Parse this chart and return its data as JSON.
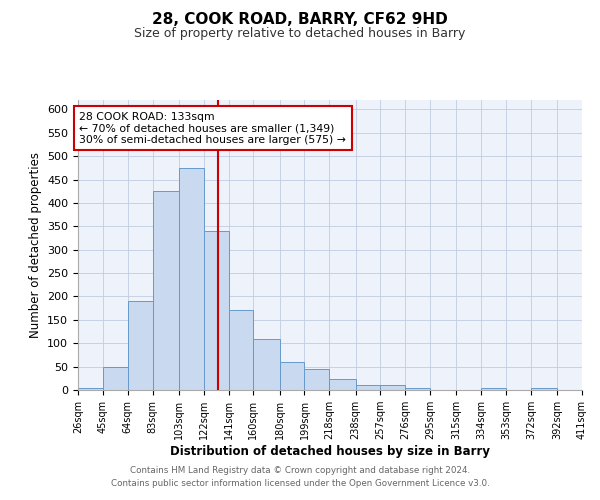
{
  "title": "28, COOK ROAD, BARRY, CF62 9HD",
  "subtitle": "Size of property relative to detached houses in Barry",
  "xlabel": "Distribution of detached houses by size in Barry",
  "ylabel": "Number of detached properties",
  "bin_labels": [
    "26sqm",
    "45sqm",
    "64sqm",
    "83sqm",
    "103sqm",
    "122sqm",
    "141sqm",
    "160sqm",
    "180sqm",
    "199sqm",
    "218sqm",
    "238sqm",
    "257sqm",
    "276sqm",
    "295sqm",
    "315sqm",
    "334sqm",
    "353sqm",
    "372sqm",
    "392sqm",
    "411sqm"
  ],
  "bin_edges": [
    26,
    45,
    64,
    83,
    103,
    122,
    141,
    160,
    180,
    199,
    218,
    238,
    257,
    276,
    295,
    315,
    334,
    353,
    372,
    392,
    411
  ],
  "bar_values": [
    5,
    50,
    190,
    425,
    475,
    340,
    172,
    108,
    60,
    45,
    23,
    10,
    10,
    5,
    0,
    0,
    5,
    0,
    5,
    0
  ],
  "bar_color": "#c9d9f0",
  "bar_edge_color": "#6699cc",
  "vline_color": "#cc0000",
  "vline_x": 133,
  "annotation_title": "28 COOK ROAD: 133sqm",
  "annotation_line1": "← 70% of detached houses are smaller (1,349)",
  "annotation_line2": "30% of semi-detached houses are larger (575) →",
  "annotation_box_facecolor": "#ffffff",
  "annotation_box_edgecolor": "#cc0000",
  "ylim": [
    0,
    620
  ],
  "yticks": [
    0,
    50,
    100,
    150,
    200,
    250,
    300,
    350,
    400,
    450,
    500,
    550,
    600
  ],
  "footer_line1": "Contains HM Land Registry data © Crown copyright and database right 2024.",
  "footer_line2": "Contains public sector information licensed under the Open Government Licence v3.0.",
  "background_color": "#eef2fa"
}
